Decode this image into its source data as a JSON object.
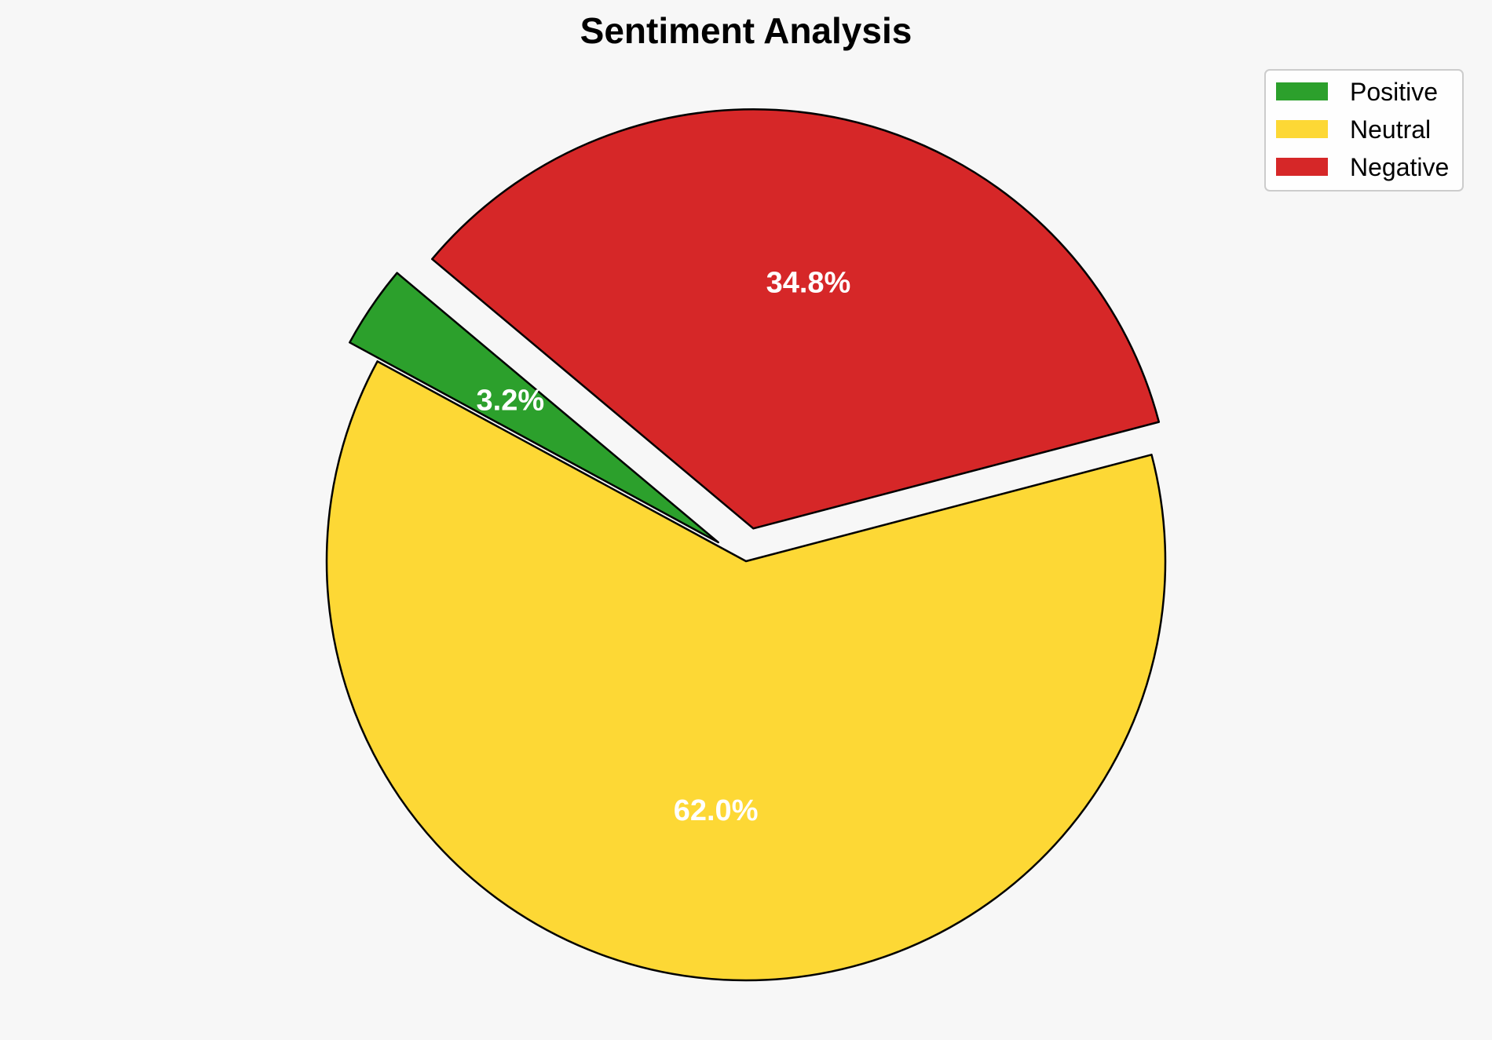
{
  "chart_data": {
    "type": "pie",
    "title": "Sentiment Analysis",
    "slices": [
      {
        "label": "Positive",
        "value": 3.2,
        "display": "3.2%",
        "color": "#2ca02c",
        "exploded": true
      },
      {
        "label": "Neutral",
        "value": 62.0,
        "display": "62.0%",
        "color": "#fdd835",
        "exploded": false
      },
      {
        "label": "Negative",
        "value": 34.8,
        "display": "34.8%",
        "color": "#d62728",
        "exploded": true
      }
    ],
    "start_angle_deg": 140,
    "direction": "counterclockwise",
    "edge_color": "#000000",
    "label_color": "#ffffff",
    "legend": {
      "placement": "top-right",
      "entries": [
        "Positive",
        "Neutral",
        "Negative"
      ]
    }
  }
}
